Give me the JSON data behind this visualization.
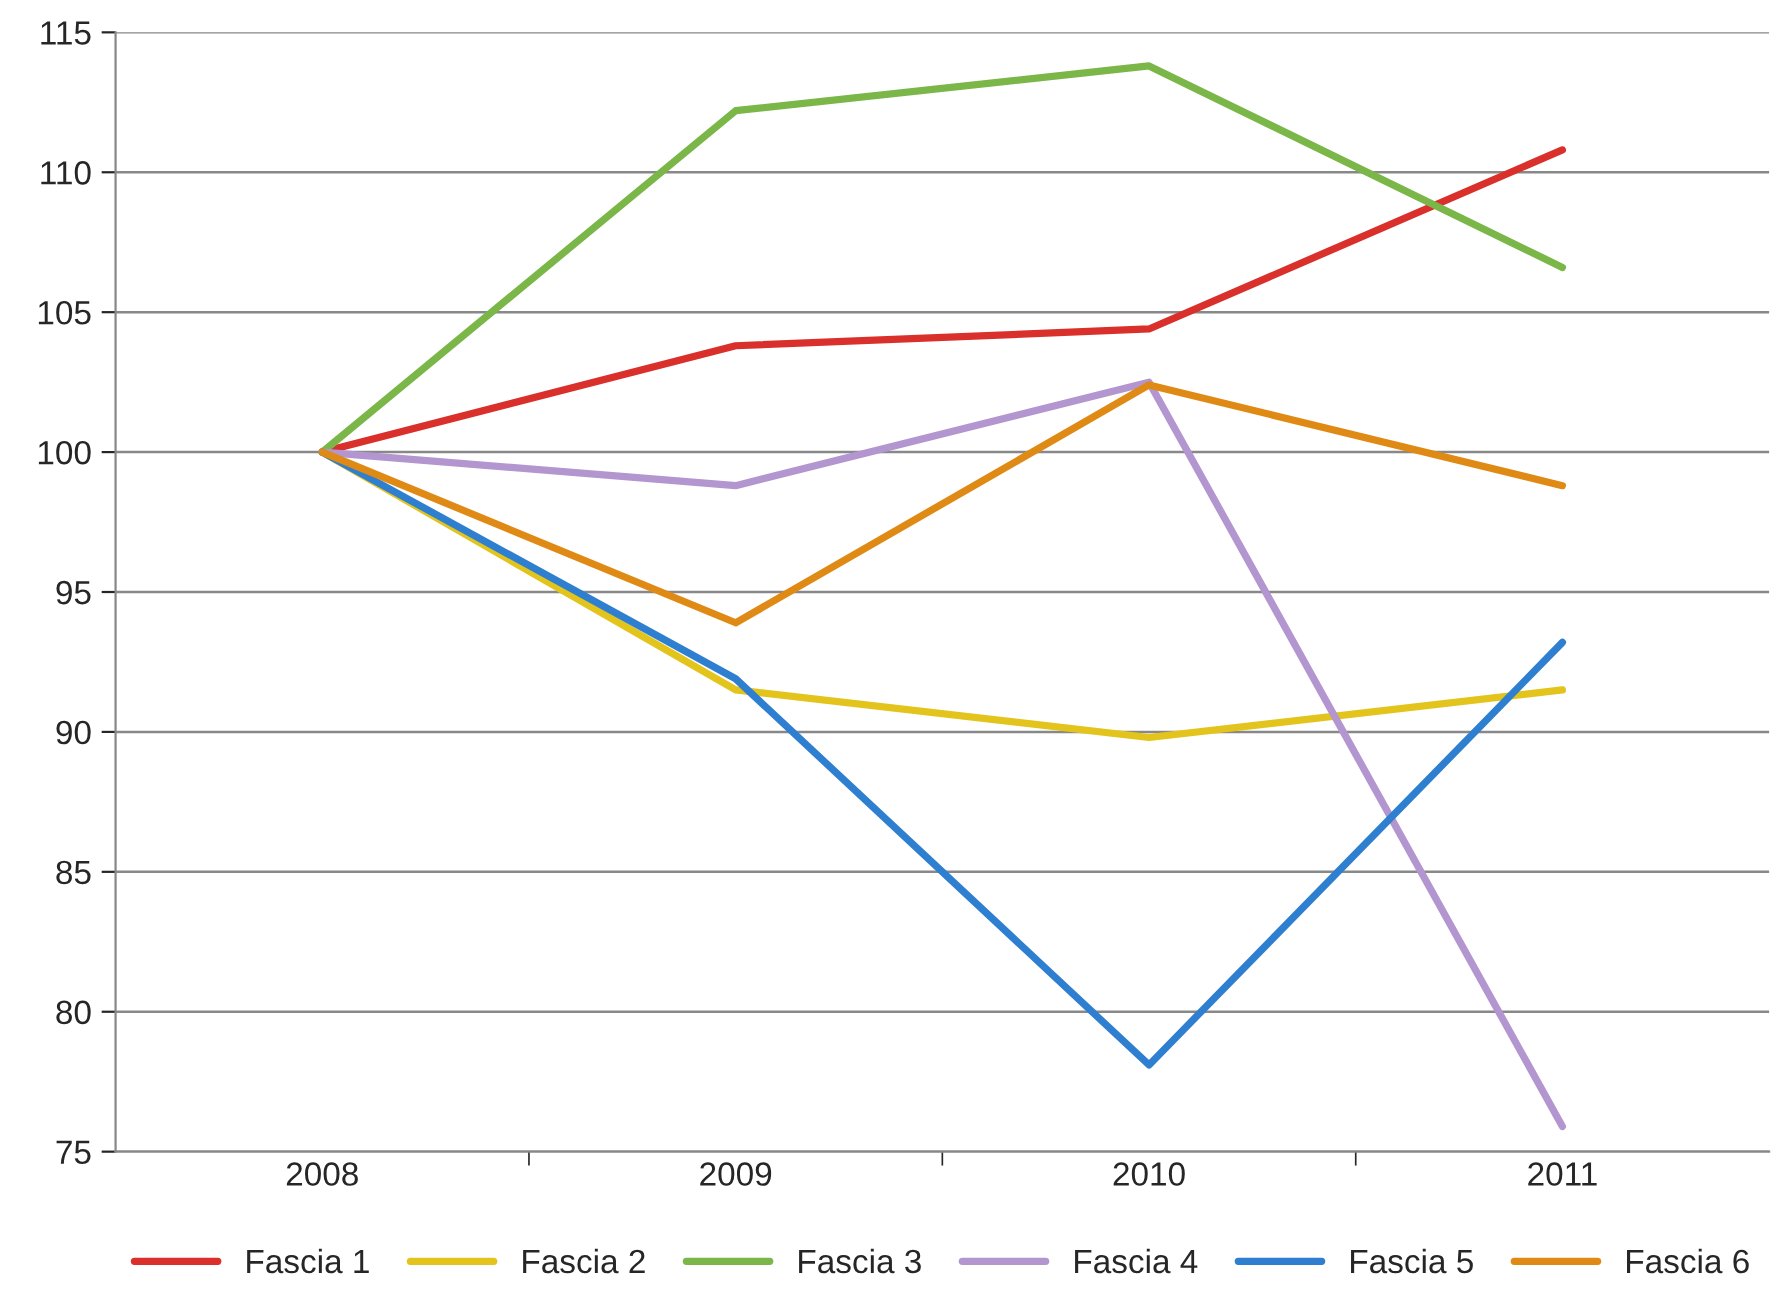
{
  "chart_data": {
    "type": "line",
    "categories": [
      "2008",
      "2009",
      "2010",
      "2011"
    ],
    "series": [
      {
        "name": "Fascia 1",
        "color": "#d9302c",
        "values": [
          100,
          103.8,
          104.4,
          110.8
        ]
      },
      {
        "name": "Fascia 2",
        "color": "#e3c41c",
        "values": [
          100,
          91.5,
          89.8,
          91.5
        ]
      },
      {
        "name": "Fascia 3",
        "color": "#7ab648",
        "values": [
          100,
          112.2,
          113.8,
          106.6
        ]
      },
      {
        "name": "Fascia 4",
        "color": "#b395cf",
        "values": [
          100,
          98.8,
          102.5,
          75.9
        ]
      },
      {
        "name": "Fascia 5",
        "color": "#2e7fd0",
        "values": [
          100,
          91.9,
          78.1,
          93.2
        ]
      },
      {
        "name": "Fascia 6",
        "color": "#e08a16",
        "values": [
          100,
          93.9,
          102.4,
          98.8
        ]
      }
    ],
    "ylim": [
      75,
      115
    ],
    "yticks": [
      75,
      80,
      85,
      90,
      95,
      100,
      105,
      110,
      115
    ],
    "grid": "y",
    "legend": "bottom",
    "marker": "none",
    "line_style": "solid"
  }
}
